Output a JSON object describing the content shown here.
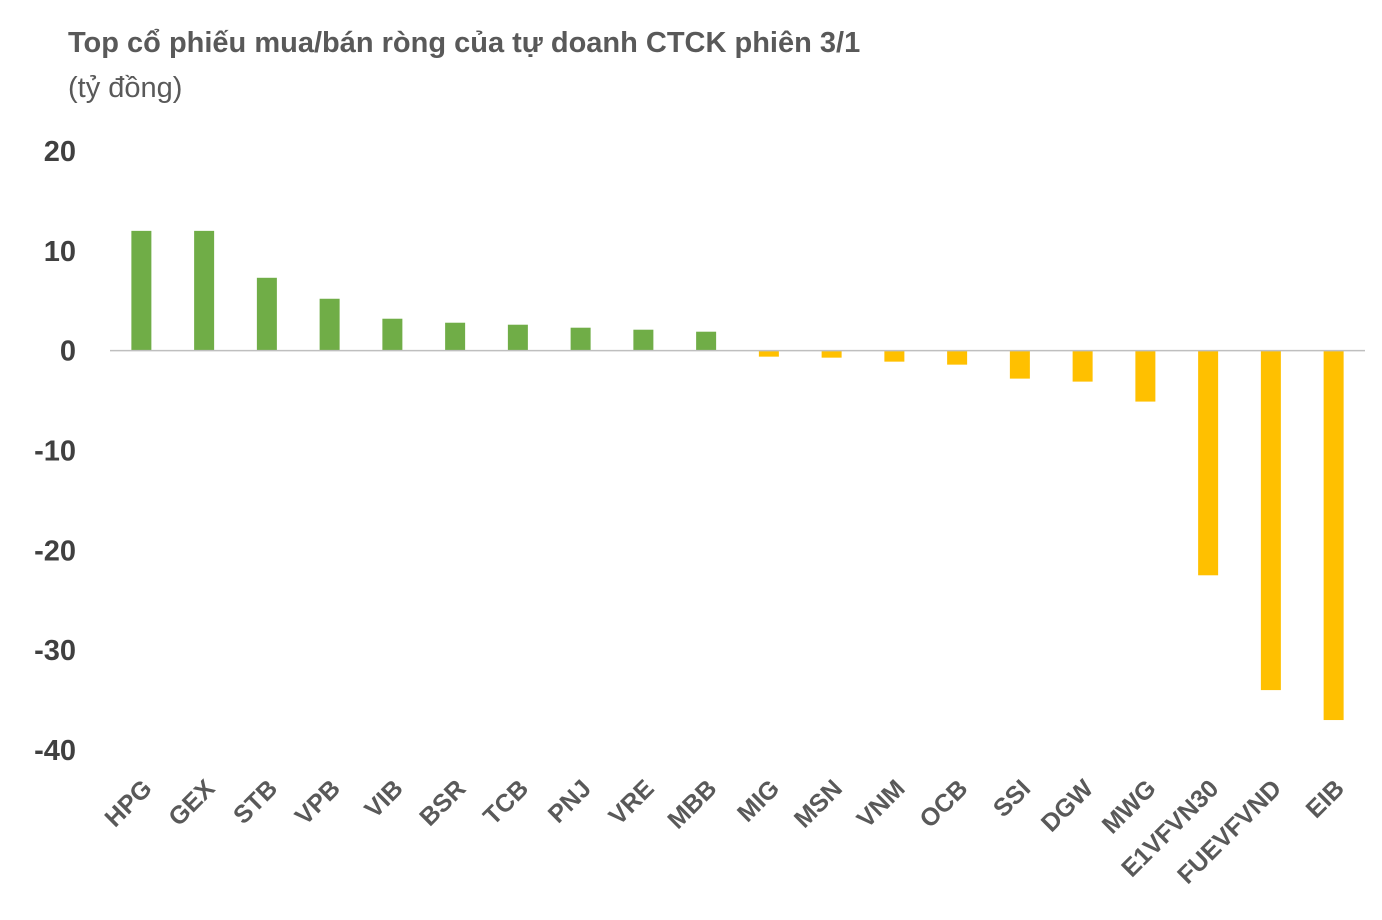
{
  "chart_data": {
    "type": "bar",
    "title": "Top cổ phiếu mua/bán ròng của tự doanh CTCK phiên 3/1",
    "subtitle": "(tỷ đồng)",
    "xlabel": "",
    "ylabel": "",
    "categories": [
      "HPG",
      "GEX",
      "STB",
      "VPB",
      "VIB",
      "BSR",
      "TCB",
      "PNJ",
      "VRE",
      "MBB",
      "MIG",
      "MSN",
      "VNM",
      "OCB",
      "SSI",
      "DGW",
      "MWG",
      "E1VFVN30",
      "FUEVFVND",
      "EIB"
    ],
    "values": [
      12.0,
      12.0,
      7.3,
      5.2,
      3.2,
      2.8,
      2.6,
      2.3,
      2.1,
      1.9,
      -0.6,
      -0.7,
      -1.1,
      -1.4,
      -2.8,
      -3.1,
      -5.1,
      -22.5,
      -34.0,
      -37.0
    ],
    "ylim": [
      -40,
      20
    ],
    "yticks": [
      20,
      10,
      0,
      -10,
      -20,
      -30,
      -40
    ],
    "grid": false,
    "legend": "none",
    "colors": {
      "positive": "#70AD47",
      "negative": "#FFC000",
      "axis": "#BFBFBF"
    }
  }
}
